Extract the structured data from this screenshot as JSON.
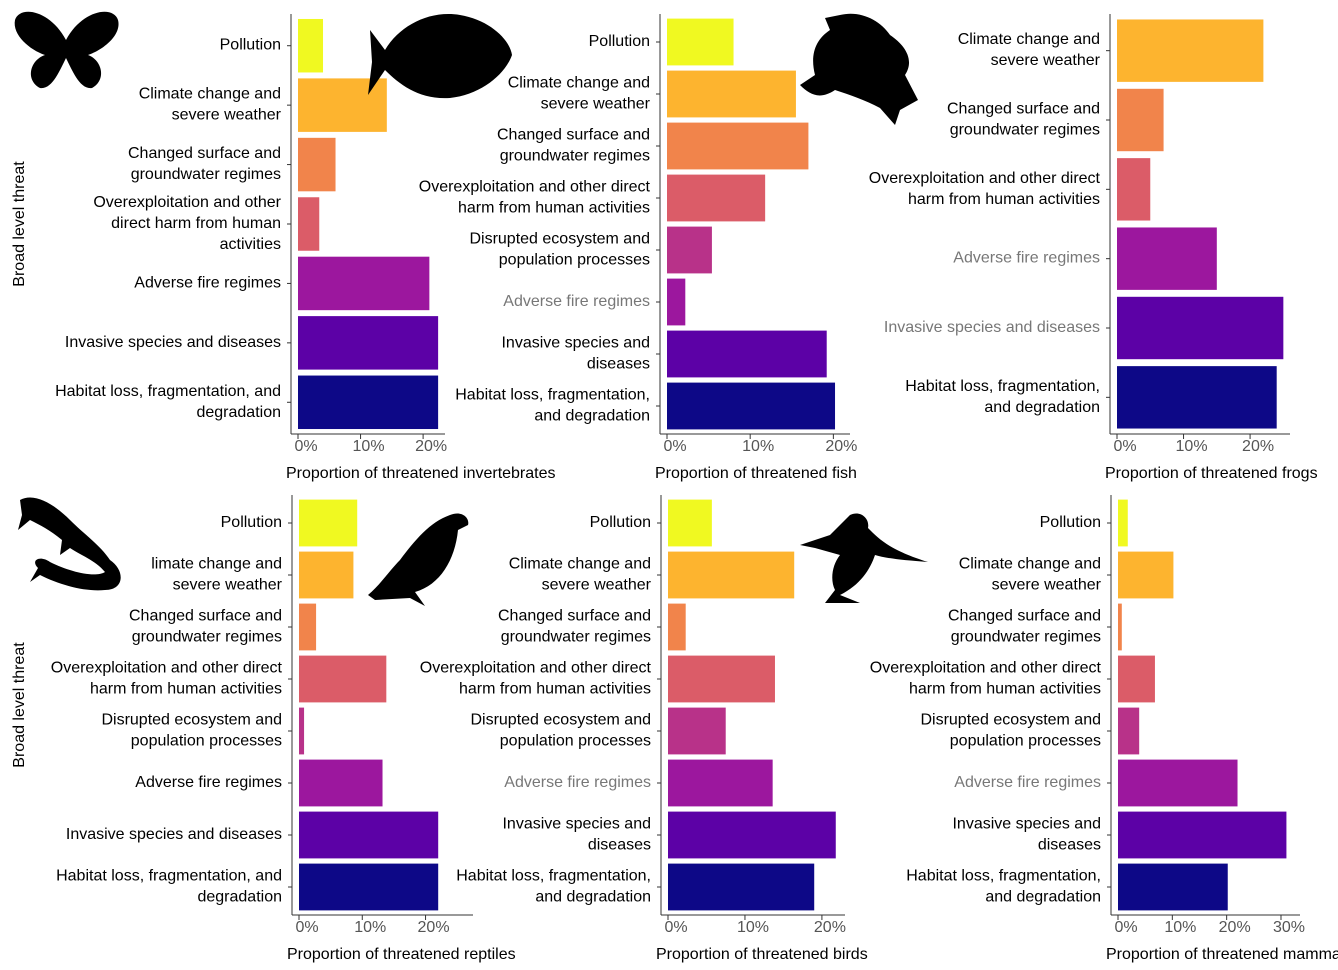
{
  "chart_data": [
    {
      "type": "bar",
      "orientation": "horizontal",
      "categories": [
        "Pollution",
        "Climate change and\nsevere weather",
        "Changed surface and\ngroundwater regimes",
        "Overexploitation and other\ndirect harm from human\nactivities",
        "Adverse fire regimes",
        "Invasive species and diseases",
        "Habitat loss, fragmentation, and\ndegradation"
      ],
      "values": [
        4,
        14.2,
        6,
        3.4,
        21,
        22.4,
        22.4
      ],
      "colors": [
        "#f0f921",
        "#fdb42f",
        "#f1844b",
        "#db5c68",
        "#9c179e",
        "#5c01a6",
        "#0d0887"
      ],
      "label_colors": [
        "#000",
        "#000",
        "#000",
        "#000",
        "#000",
        "#000",
        "#000"
      ],
      "xlim": [
        0,
        23.5
      ],
      "xticks": [
        {
          "value": 0,
          "label": "0%"
        },
        {
          "value": 10,
          "label": "10%"
        },
        {
          "value": 20,
          "label": "20%"
        }
      ],
      "xlabel": "Proportion of threatened invertebrates",
      "ylabel": "Broad level threat"
    },
    {
      "type": "bar",
      "orientation": "horizontal",
      "categories": [
        "Pollution",
        "Climate change and\nsevere weather",
        "Changed surface and\ngroundwater regimes",
        "Overexploitation and other direct\nharm from human activities",
        "Disrupted ecosystem and\npopulation processes",
        "Adverse fire regimes",
        "Invasive species and\ndiseases",
        "Habitat loss, fragmentation,\nand degradation"
      ],
      "values": [
        8,
        15.5,
        17,
        11.8,
        5.4,
        2.2,
        19.2,
        20.2
      ],
      "colors": [
        "#f0f921",
        "#fdb42f",
        "#f1844b",
        "#db5c68",
        "#b83289",
        "#9c179e",
        "#5c01a6",
        "#0d0887"
      ],
      "label_colors": [
        "#000",
        "#000",
        "#000",
        "#000",
        "#000",
        "#777",
        "#000",
        "#000"
      ],
      "xlim": [
        0,
        22
      ],
      "xticks": [
        {
          "value": 0,
          "label": "0%"
        },
        {
          "value": 10,
          "label": "10%"
        },
        {
          "value": 20,
          "label": "20%"
        }
      ],
      "xlabel": "Proportion of threatened fish"
    },
    {
      "type": "bar",
      "orientation": "horizontal",
      "categories": [
        "Climate change and\nsevere weather",
        "Changed surface and\ngroundwater regimes",
        "Overexploitation and other direct\nharm from human activities",
        "Adverse fire regimes",
        "Invasive species and diseases",
        "Habitat loss, fragmentation,\nand degradation"
      ],
      "values": [
        22,
        7,
        5,
        15,
        25,
        24
      ],
      "colors": [
        "#fdb42f",
        "#f1844b",
        "#db5c68",
        "#9c179e",
        "#5c01a6",
        "#0d0887"
      ],
      "label_colors": [
        "#000",
        "#000",
        "#000",
        "#777",
        "#777",
        "#000"
      ],
      "xlim": [
        0,
        26
      ],
      "xticks": [
        {
          "value": 0,
          "label": "0%"
        },
        {
          "value": 10,
          "label": "10%"
        },
        {
          "value": 20,
          "label": "20%"
        }
      ],
      "xlabel": "Proportion of threatened frogs"
    },
    {
      "type": "bar",
      "orientation": "horizontal",
      "categories": [
        "Pollution",
        "limate change and\nsevere weather",
        "Changed surface and\ngroundwater regimes",
        "Overexploitation and other direct\nharm from human activities",
        "Disrupted ecosystem and\npopulation processes",
        "Adverse fire regimes",
        "Invasive species and diseases",
        "Habitat loss, fragmentation, and\ndegradation"
      ],
      "values": [
        9.2,
        8.6,
        2.7,
        13.8,
        0.8,
        13.2,
        22,
        22
      ],
      "colors": [
        "#f0f921",
        "#fdb42f",
        "#f1844b",
        "#db5c68",
        "#b83289",
        "#9c179e",
        "#5c01a6",
        "#0d0887"
      ],
      "label_colors": [
        "#000",
        "#000",
        "#000",
        "#000",
        "#000",
        "#000",
        "#000",
        "#000"
      ],
      "xlim": [
        0,
        27.5
      ],
      "xticks": [
        {
          "value": 0,
          "label": "0%"
        },
        {
          "value": 10,
          "label": "10%"
        },
        {
          "value": 20,
          "label": "20%"
        }
      ],
      "xlabel": "Proportion of threatened reptiles",
      "ylabel": "Broad level threat"
    },
    {
      "type": "bar",
      "orientation": "horizontal",
      "categories": [
        "Pollution",
        "Climate change and\nsevere weather",
        "Changed surface and\ngroundwater regimes",
        "Overexploitation and other direct\nharm from human activities",
        "Disrupted ecosystem and\npopulation processes",
        "Adverse fire regimes",
        "Invasive species and\ndiseases",
        "Habitat loss, fragmentation,\nand degradation"
      ],
      "values": [
        5.7,
        16.4,
        2.3,
        13.9,
        7.5,
        13.6,
        21.8,
        19
      ],
      "colors": [
        "#f0f921",
        "#fdb42f",
        "#f1844b",
        "#db5c68",
        "#b83289",
        "#9c179e",
        "#5c01a6",
        "#0d0887"
      ],
      "label_colors": [
        "#000",
        "#000",
        "#000",
        "#000",
        "#000",
        "#777",
        "#000",
        "#000"
      ],
      "xlim": [
        0,
        23
      ],
      "xticks": [
        {
          "value": 0,
          "label": "0%"
        },
        {
          "value": 10,
          "label": "10%"
        },
        {
          "value": 20,
          "label": "20%"
        }
      ],
      "xlabel": "Proportion of threatened birds"
    },
    {
      "type": "bar",
      "orientation": "horizontal",
      "categories": [
        "Pollution",
        "Climate change and\nsevere weather",
        "Changed surface and\ngroundwater regimes",
        "Overexploitation and other direct\nharm from human activities",
        "Disrupted ecosystem and\npopulation processes",
        "Adverse fire regimes",
        "Invasive species and\ndiseases",
        "Habitat loss, fragmentation,\nand degradation"
      ],
      "values": [
        1.8,
        10.2,
        0.7,
        6.8,
        3.9,
        22,
        31,
        20.2
      ],
      "colors": [
        "#f0f921",
        "#fdb42f",
        "#f1844b",
        "#db5c68",
        "#b83289",
        "#9c179e",
        "#5c01a6",
        "#0d0887"
      ],
      "label_colors": [
        "#000",
        "#000",
        "#000",
        "#000",
        "#000",
        "#777",
        "#000",
        "#000"
      ],
      "xlim": [
        0,
        33.5
      ],
      "xticks": [
        {
          "value": 0,
          "label": "0%"
        },
        {
          "value": 10,
          "label": "10%"
        },
        {
          "value": 20,
          "label": "20%"
        },
        {
          "value": 30,
          "label": "30%"
        }
      ],
      "xlabel": "Proportion of threatened mammals"
    }
  ]
}
